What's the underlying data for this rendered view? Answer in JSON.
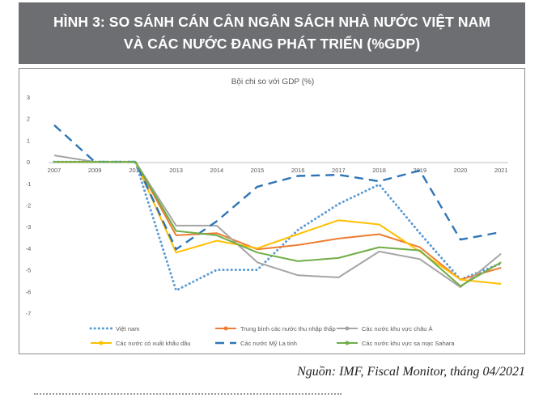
{
  "figure": {
    "title_line1": "HÌNH 3: SO SÁNH CÁN CÂN NGÂN SÁCH NHÀ NƯỚC VIỆT NAM",
    "title_line2": "VÀ CÁC NƯỚC ĐANG PHÁT TRIỂN (%GDP)",
    "source": "Nguồn: IMF, Fiscal Monitor, tháng 04/2021"
  },
  "chart_data": {
    "type": "line",
    "title": "Bội chi so với GDP (%)",
    "categories": [
      "2007",
      "2009",
      "2011",
      "2013",
      "2014",
      "2015",
      "2016",
      "2017",
      "2018",
      "2019",
      "2020",
      "2021"
    ],
    "ylim": [
      -7,
      3
    ],
    "yticks": [
      3,
      2,
      1,
      0,
      -1,
      -2,
      -3,
      -4,
      -5,
      -6,
      -7
    ],
    "grid": false,
    "legend_position": "bottom",
    "series": [
      {
        "name": "Việt nam",
        "color": "#5b9bd5",
        "dash": "dotted",
        "values": [
          0,
          0,
          0,
          -5.95,
          -5.0,
          -5.0,
          -3.15,
          -1.95,
          -1.05,
          -3.3,
          -5.45,
          -4.7
        ]
      },
      {
        "name": "Trung bình các nước thu nhập thấp",
        "color": "#ed7d31",
        "dash": "solid",
        "values": [
          0,
          0,
          0,
          -3.4,
          -3.3,
          -4.05,
          -3.85,
          -3.55,
          -3.35,
          -3.95,
          -5.45,
          -4.9
        ]
      },
      {
        "name": "Các nước khu vực châu Á",
        "color": "#a5a5a5",
        "dash": "solid",
        "values": [
          0.3,
          0,
          0,
          -2.95,
          -2.95,
          -4.65,
          -5.25,
          -5.35,
          -4.15,
          -4.5,
          -5.8,
          -4.25
        ]
      },
      {
        "name": "Các nước có xuất khẩu dầu",
        "color": "#ffc000",
        "dash": "solid",
        "values": [
          0,
          0,
          0,
          -4.2,
          -3.65,
          -4.0,
          -3.35,
          -2.7,
          -2.9,
          -4.15,
          -5.45,
          -5.65
        ]
      },
      {
        "name": "Các nước Mỹ La tinh",
        "color": "#2e75b6",
        "dash": "dashed",
        "values": [
          1.7,
          0,
          0,
          -4.05,
          -2.75,
          -1.15,
          -0.65,
          -0.6,
          -0.9,
          -0.4,
          -3.6,
          -3.25
        ]
      },
      {
        "name": "Các nước khu vực sa mạc Sahara",
        "color": "#70ad47",
        "dash": "solid",
        "values": [
          0,
          0,
          0,
          -3.2,
          -3.4,
          -4.2,
          -4.6,
          -4.45,
          -3.95,
          -4.1,
          -5.75,
          -4.65
        ]
      }
    ]
  }
}
